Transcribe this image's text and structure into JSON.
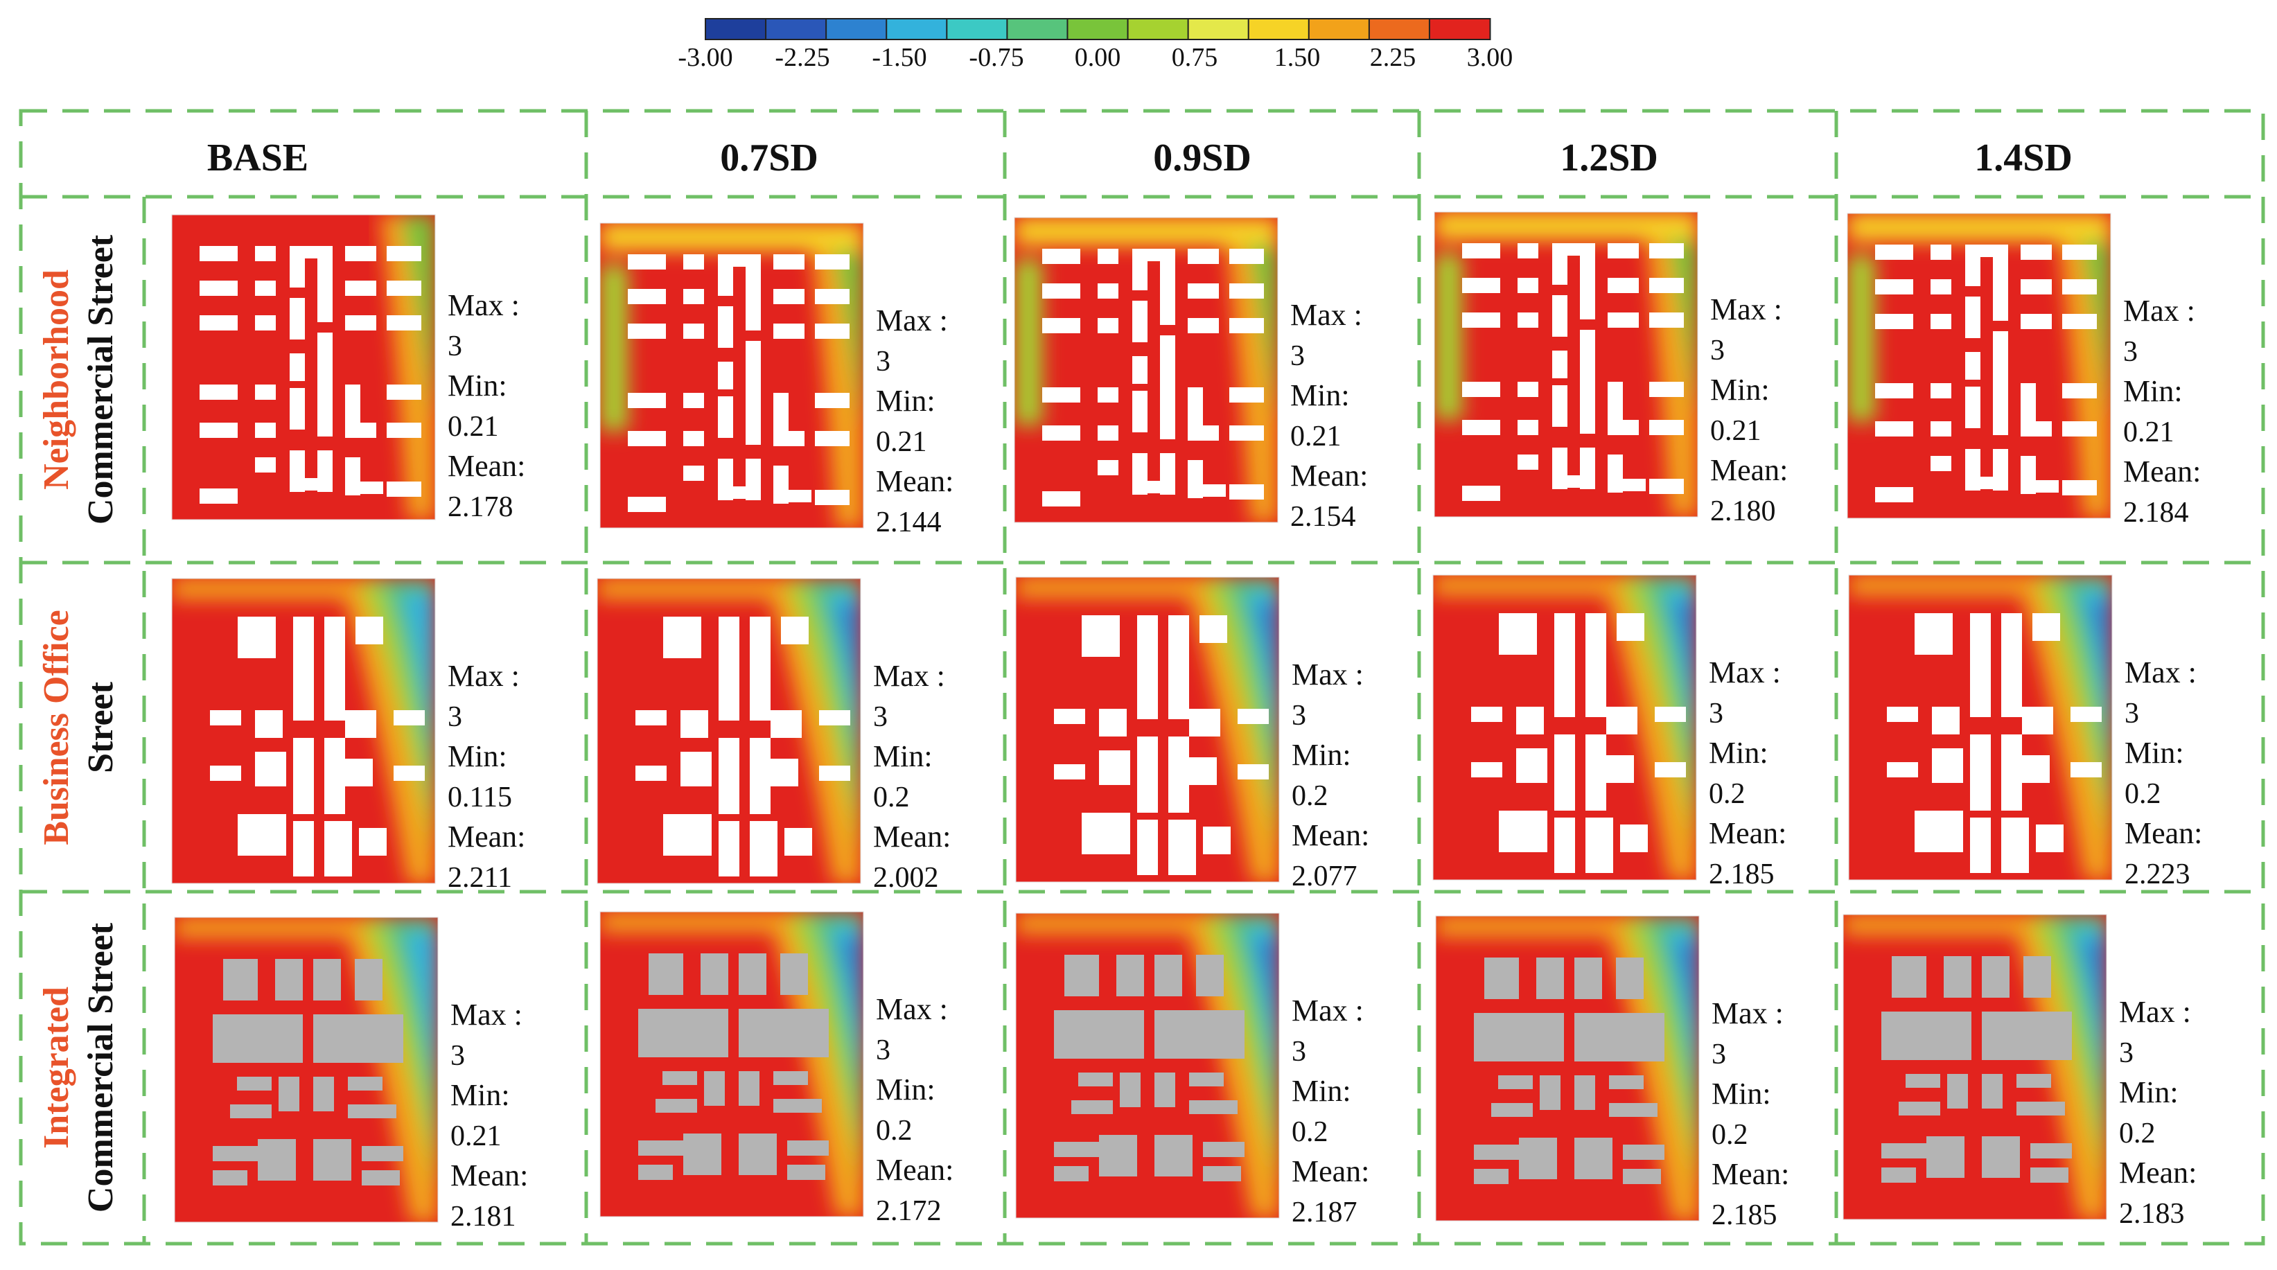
{
  "colorbar": {
    "ticks": [
      "-3.00",
      "-2.25",
      "-1.50",
      "-0.75",
      "0.00",
      "0.75",
      "1.50",
      "2.25",
      "3.00"
    ],
    "colors": [
      "#1e3f9c",
      "#2a57b8",
      "#2d82d0",
      "#33b2dc",
      "#3cc9c4",
      "#57c47c",
      "#79c43a",
      "#a6d230",
      "#e4e84a",
      "#f6d326",
      "#f2a21a",
      "#ec6a1e",
      "#e2231e"
    ]
  },
  "columns": [
    "BASE",
    "0.7SD",
    "0.9SD",
    "1.2SD",
    "1.4SD"
  ],
  "rows": [
    {
      "label_red": "Neighborhood",
      "label_black": "Commercial Street",
      "building_color": "#ffffff",
      "stats": [
        {
          "max_label": "Max :",
          "max": "3",
          "min_label": "Min:",
          "min": "0.21",
          "mean_label": "Mean:",
          "mean": "2.178"
        },
        {
          "max_label": "Max :",
          "max": "3",
          "min_label": "Min:",
          "min": "0.21",
          "mean_label": "Mean:",
          "mean": "2.144"
        },
        {
          "max_label": "Max :",
          "max": "3",
          "min_label": "Min:",
          "min": "0.21",
          "mean_label": "Mean:",
          "mean": "2.154"
        },
        {
          "max_label": "Max :",
          "max": "3",
          "min_label": "Min:",
          "min": "0.21",
          "mean_label": "Mean:",
          "mean": "2.180"
        },
        {
          "max_label": "Max :",
          "max": "3",
          "min_label": "Min:",
          "min": "0.21",
          "mean_label": "Mean:",
          "mean": "2.184"
        }
      ]
    },
    {
      "label_red": "Business Office",
      "label_black": "Street",
      "building_color": "#ffffff",
      "stats": [
        {
          "max_label": "Max :",
          "max": "3",
          "min_label": "Min:",
          "min": "0.115",
          "mean_label": "Mean:",
          "mean": "2.211"
        },
        {
          "max_label": "Max :",
          "max": "3",
          "min_label": "Min:",
          "min": "0.2",
          "mean_label": "Mean:",
          "mean": "2.002"
        },
        {
          "max_label": "Max :",
          "max": "3",
          "min_label": "Min:",
          "min": "0.2",
          "mean_label": "Mean:",
          "mean": "2.077"
        },
        {
          "max_label": "Max :",
          "max": "3",
          "min_label": "Min:",
          "min": "0.2",
          "mean_label": "Mean:",
          "mean": "2.185"
        },
        {
          "max_label": "Max :",
          "max": "3",
          "min_label": "Min:",
          "min": "0.2",
          "mean_label": "Mean:",
          "mean": "2.223"
        }
      ]
    },
    {
      "label_red": "Integrated",
      "label_black": "Commercial Street",
      "building_color": "#b4b4b4",
      "stats": [
        {
          "max_label": "Max :",
          "max": "3",
          "min_label": "Min:",
          "min": "0.21",
          "mean_label": "Mean:",
          "mean": "2.181"
        },
        {
          "max_label": "Max :",
          "max": "3",
          "min_label": "Min:",
          "min": "0.2",
          "mean_label": "Mean:",
          "mean": "2.172"
        },
        {
          "max_label": "Max :",
          "max": "3",
          "min_label": "Min:",
          "min": "0.2",
          "mean_label": "Mean:",
          "mean": "2.187"
        },
        {
          "max_label": "Max :",
          "max": "3",
          "min_label": "Min:",
          "min": "0.2",
          "mean_label": "Mean:",
          "mean": "2.185"
        },
        {
          "max_label": "Max :",
          "max": "3",
          "min_label": "Min:",
          "min": "0.2",
          "mean_label": "Mean:",
          "mean": "2.183"
        }
      ]
    }
  ],
  "colors": {
    "grid_line": "#6fbf66",
    "label_red": "#e8532a",
    "map_red": "#e2231e"
  }
}
